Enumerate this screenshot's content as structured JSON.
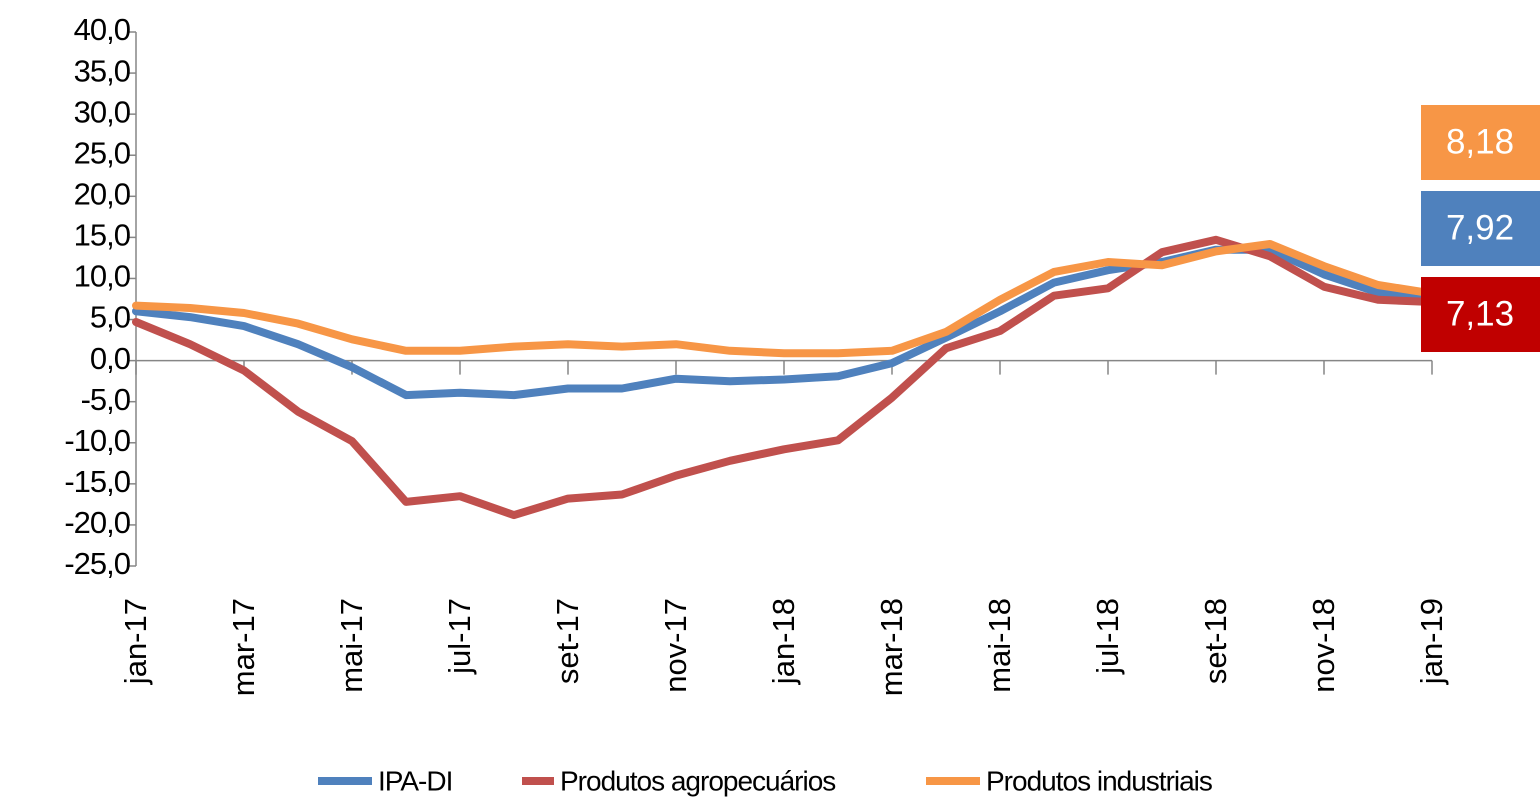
{
  "chart_data": {
    "type": "line",
    "categories": [
      "jan-17",
      null,
      "mar-17",
      null,
      "mai-17",
      null,
      "jul-17",
      null,
      "set-17",
      null,
      "nov-17",
      null,
      "jan-18",
      null,
      "mar-18",
      null,
      "mai-18",
      null,
      "jul-18",
      null,
      "set-18",
      null,
      "nov-18",
      null,
      "jan-19"
    ],
    "series": [
      {
        "name": "IPA-DI",
        "color": "#4f81bd",
        "values": [
          6.0,
          5.3,
          4.2,
          2.0,
          -0.8,
          -4.2,
          -3.9,
          -4.2,
          -3.4,
          -3.4,
          -2.2,
          -2.5,
          -2.3,
          -1.9,
          -0.3,
          2.8,
          6.0,
          9.5,
          11.0,
          12.0,
          13.5,
          13.5,
          10.5,
          8.3,
          7.92
        ]
      },
      {
        "name": "Produtos agropecuários",
        "color": "#c0504d",
        "values": [
          4.7,
          2.0,
          -1.2,
          -6.2,
          -9.8,
          -17.2,
          -16.5,
          -18.8,
          -16.8,
          -16.3,
          -14.0,
          -12.2,
          -10.8,
          -9.7,
          -4.5,
          1.5,
          3.6,
          7.9,
          8.8,
          13.2,
          14.7,
          12.7,
          9.0,
          7.4,
          7.13
        ]
      },
      {
        "name": "Produtos industriais",
        "color": "#f79646",
        "values": [
          6.7,
          6.4,
          5.8,
          4.5,
          2.6,
          1.2,
          1.2,
          1.7,
          2.0,
          1.7,
          2.0,
          1.2,
          0.9,
          0.9,
          1.2,
          3.5,
          7.4,
          10.8,
          12.0,
          11.6,
          13.3,
          14.2,
          11.5,
          9.2,
          8.18
        ]
      }
    ],
    "ylim": [
      -25,
      40
    ],
    "yticks": [
      {
        "value": -25,
        "label": "-25,0"
      },
      {
        "value": -20,
        "label": "-20,0"
      },
      {
        "value": -15,
        "label": "-15,0"
      },
      {
        "value": -10,
        "label": "-10,0"
      },
      {
        "value": -5,
        "label": "-5,0"
      },
      {
        "value": 0,
        "label": "0,0"
      },
      {
        "value": 5,
        "label": "5,0"
      },
      {
        "value": 10,
        "label": "10,0"
      },
      {
        "value": 15,
        "label": "15,0"
      },
      {
        "value": 20,
        "label": "20,0"
      },
      {
        "value": 25,
        "label": "25,0"
      },
      {
        "value": 30,
        "label": "30,0"
      },
      {
        "value": 35,
        "label": "35,0"
      },
      {
        "value": 40,
        "label": "40,0"
      }
    ],
    "grid": false,
    "legend": "bottom",
    "end_labels": [
      {
        "text": "8,18",
        "color": "#f79646"
      },
      {
        "text": "7,92",
        "color": "#4f81bd"
      },
      {
        "text": "7,13",
        "color": "#c00000"
      }
    ]
  }
}
